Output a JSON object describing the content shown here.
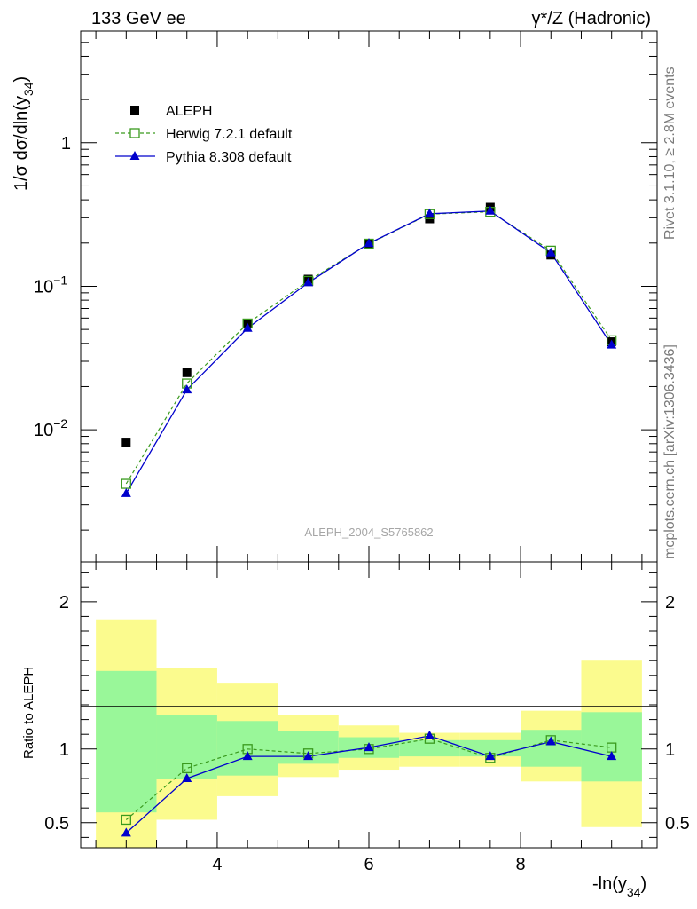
{
  "header": {
    "left": "133 GeV ee",
    "right": "γ*/Z (Hadronic)"
  },
  "side_labels": {
    "rivet": "Rivet 3.1.10, ≥ 2.8M events",
    "mcplots": "mcplots.cern.ch [arXiv:1306.3436]"
  },
  "watermark": "ALEPH_2004_S5765862",
  "colors": {
    "aleph": "#000000",
    "herwig": "#3a9a1e",
    "pythia": "#0000cc",
    "band_inner": "#99f799",
    "band_outer": "#fbfb8e"
  },
  "chart_data": [
    {
      "type": "scatter",
      "name": "main",
      "ylabel": "1/σ  dσ/dln(y34)",
      "yscale": "log",
      "xlim": [
        2.2,
        9.8
      ],
      "ylim": [
        0.0012,
        6
      ],
      "ytick_labels": [
        "10^-2",
        "10^-1",
        "1"
      ],
      "legend_position": "top-left",
      "x": [
        2.8,
        3.6,
        4.4,
        5.2,
        6.0,
        6.8,
        7.6,
        8.4,
        9.2
      ],
      "series": [
        {
          "name": "ALEPH",
          "style": "data-points",
          "values": [
            0.0082,
            0.025,
            0.055,
            0.112,
            0.197,
            0.295,
            0.355,
            0.165,
            0.041
          ]
        },
        {
          "name": "Herwig 7.2.1 default",
          "style": "dashed-open-square",
          "values": [
            0.0042,
            0.021,
            0.055,
            0.109,
            0.198,
            0.318,
            0.33,
            0.177,
            0.042
          ]
        },
        {
          "name": "Pythia 8.308 default",
          "style": "solid-triangle",
          "values": [
            0.0036,
            0.019,
            0.051,
            0.106,
            0.199,
            0.32,
            0.334,
            0.171,
            0.039
          ]
        }
      ]
    },
    {
      "type": "line",
      "name": "ratio",
      "ylabel": "Ratio to ALEPH",
      "xlabel": "-ln(y34)",
      "xlim": [
        2.2,
        9.8
      ],
      "ylim": [
        0.33,
        2.27
      ],
      "xtick_labels": [
        "4",
        "6",
        "8"
      ],
      "ytick_labels": [
        "0.5",
        "1",
        "2"
      ],
      "x": [
        2.8,
        3.6,
        4.4,
        5.2,
        6.0,
        6.8,
        7.6,
        8.4,
        9.2
      ],
      "bins": [
        [
          2.4,
          3.2
        ],
        [
          3.2,
          4.0
        ],
        [
          4.0,
          4.8
        ],
        [
          4.8,
          5.6
        ],
        [
          5.6,
          6.4
        ],
        [
          6.4,
          7.2
        ],
        [
          7.2,
          8.0
        ],
        [
          8.0,
          8.8
        ],
        [
          8.8,
          9.6
        ]
      ],
      "band_inner": [
        [
          0.57,
          1.53
        ],
        [
          0.8,
          1.23
        ],
        [
          0.82,
          1.19
        ],
        [
          0.9,
          1.12
        ],
        [
          0.94,
          1.08
        ],
        [
          0.95,
          1.06
        ],
        [
          0.95,
          1.06
        ],
        [
          0.88,
          1.13
        ],
        [
          0.78,
          1.25
        ]
      ],
      "band_outer": [
        [
          0.33,
          1.88
        ],
        [
          0.52,
          1.55
        ],
        [
          0.68,
          1.45
        ],
        [
          0.81,
          1.23
        ],
        [
          0.86,
          1.16
        ],
        [
          0.88,
          1.11
        ],
        [
          0.88,
          1.11
        ],
        [
          0.78,
          1.26
        ],
        [
          0.47,
          1.6
        ]
      ],
      "series": [
        {
          "name": "Herwig 7.2.1 default",
          "values": [
            0.52,
            0.87,
            1.0,
            0.97,
            1.0,
            1.07,
            0.94,
            1.06,
            1.01
          ]
        },
        {
          "name": "Pythia 8.308 default",
          "values": [
            0.43,
            0.8,
            0.95,
            0.95,
            1.01,
            1.09,
            0.95,
            1.05,
            0.95
          ]
        }
      ]
    }
  ]
}
